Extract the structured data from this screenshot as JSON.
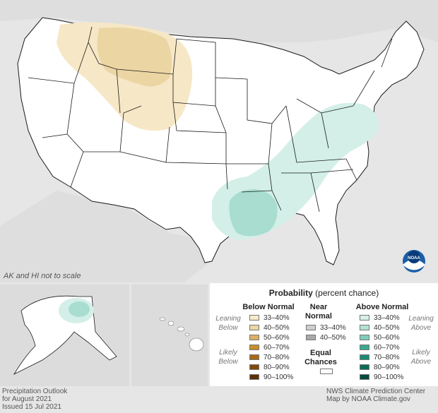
{
  "map": {
    "scale_note": "AK and HI not to scale",
    "colors": {
      "water": "#e6e6e6",
      "land": "#ffffff",
      "border": "#1a1a1a",
      "below_33_40": "#f6e7c6",
      "below_40_50": "#ebd5a3",
      "above_33_40": "#d3efe8",
      "above_40_50": "#a8ddd0"
    },
    "regions": [
      {
        "name": "below-normal-northwest",
        "category": "Below Normal",
        "level": "33–40%"
      },
      {
        "name": "below-normal-montana-core",
        "category": "Below Normal",
        "level": "40–50%"
      },
      {
        "name": "above-normal-southeast-band",
        "category": "Above Normal",
        "level": "33–40%"
      },
      {
        "name": "above-normal-louisiana-core",
        "category": "Above Normal",
        "level": "40–50%"
      },
      {
        "name": "above-normal-alaska",
        "category": "Above Normal",
        "level": "33–40%"
      }
    ]
  },
  "legend": {
    "title": "Probability",
    "subtitle": "(percent chance)",
    "below": {
      "heading": "Below Normal",
      "leaning_label": [
        "Leaning",
        "Below"
      ],
      "likely_label": [
        "Likely",
        "Below"
      ],
      "levels": [
        {
          "label": "33–40%",
          "color": "#f8ebcc"
        },
        {
          "label": "40–50%",
          "color": "#ecd6a4"
        },
        {
          "label": "50–60%",
          "color": "#dcb066"
        },
        {
          "label": "60–70%",
          "color": "#c98c2e"
        },
        {
          "label": "70–80%",
          "color": "#a86a1a"
        },
        {
          "label": "80–90%",
          "color": "#7f4a10"
        },
        {
          "label": "90–100%",
          "color": "#5a320a"
        }
      ]
    },
    "near": {
      "heading": [
        "Near",
        "Normal"
      ],
      "levels": [
        {
          "label": "33–40%",
          "color": "#cfcfcf"
        },
        {
          "label": "40–50%",
          "color": "#a9a9a9"
        }
      ]
    },
    "equal": {
      "heading": [
        "Equal",
        "Chances"
      ],
      "color": "#ffffff"
    },
    "above": {
      "heading": "Above Normal",
      "leaning_label": [
        "Leaning",
        "Above"
      ],
      "likely_label": [
        "Likely",
        "Above"
      ],
      "levels": [
        {
          "label": "33–40%",
          "color": "#d6f0ea"
        },
        {
          "label": "40–50%",
          "color": "#b1e2d6"
        },
        {
          "label": "50–60%",
          "color": "#7fcdb9"
        },
        {
          "label": "60–70%",
          "color": "#3aa88f"
        },
        {
          "label": "70–80%",
          "color": "#1c8a73"
        },
        {
          "label": "80–90%",
          "color": "#0d6a57"
        },
        {
          "label": "90–100%",
          "color": "#064a3c"
        }
      ]
    }
  },
  "footer": {
    "left": [
      "Precipitation Outlook",
      "for August 2021",
      "Issued 15 Jul 2021"
    ],
    "right": [
      "NWS Climate Prediction Center",
      "Map by NOAA Climate.gov"
    ]
  },
  "logo": {
    "text": "NOAA"
  }
}
